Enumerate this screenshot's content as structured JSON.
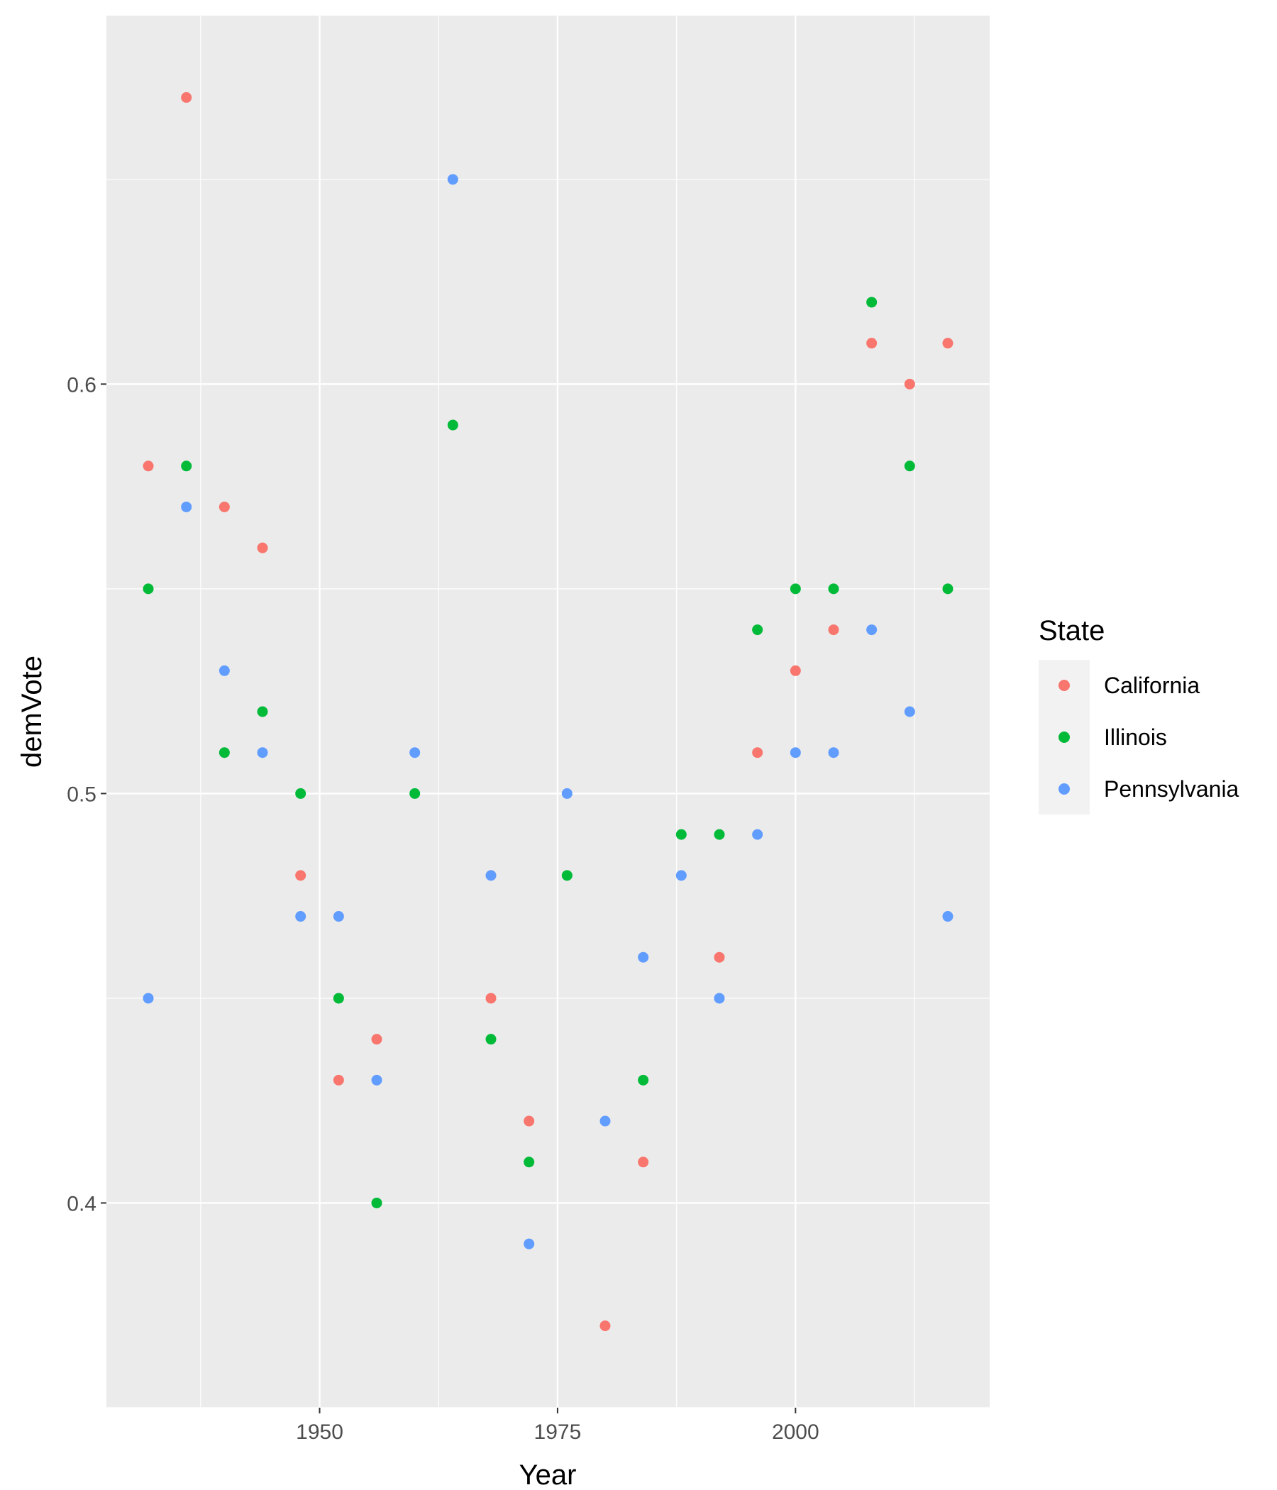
{
  "chart_data": {
    "type": "scatter",
    "xlabel": "Year",
    "ylabel": "demVote",
    "xlim": [
      1927.6,
      2020.4
    ],
    "ylim": [
      0.35,
      0.69
    ],
    "x_ticks": [
      1950,
      1975,
      2000
    ],
    "x_minor_ticks": [
      1937.5,
      1962.5,
      1987.5,
      2012.5
    ],
    "y_ticks": [
      0.4,
      0.5,
      0.6
    ],
    "y_minor_ticks": [
      0.35,
      0.45,
      0.55,
      0.65
    ],
    "grid": true,
    "legend": {
      "title": "State",
      "position": "right"
    },
    "series": [
      {
        "name": "California",
        "color": "#F8766D",
        "points": [
          [
            1932,
            0.58
          ],
          [
            1936,
            0.67
          ],
          [
            1940,
            0.57
          ],
          [
            1944,
            0.56
          ],
          [
            1948,
            0.48
          ],
          [
            1952,
            0.43
          ],
          [
            1956,
            0.44
          ],
          [
            1968,
            0.45
          ],
          [
            1972,
            0.42
          ],
          [
            1980,
            0.37
          ],
          [
            1984,
            0.41
          ],
          [
            1992,
            0.46
          ],
          [
            1996,
            0.51
          ],
          [
            2000,
            0.53
          ],
          [
            2004,
            0.54
          ],
          [
            2008,
            0.61
          ],
          [
            2012,
            0.6
          ],
          [
            2016,
            0.61
          ]
        ]
      },
      {
        "name": "Illinois",
        "color": "#00BA38",
        "points": [
          [
            1932,
            0.55
          ],
          [
            1936,
            0.58
          ],
          [
            1940,
            0.51
          ],
          [
            1944,
            0.52
          ],
          [
            1948,
            0.5
          ],
          [
            1952,
            0.45
          ],
          [
            1956,
            0.4
          ],
          [
            1960,
            0.5
          ],
          [
            1964,
            0.59
          ],
          [
            1968,
            0.44
          ],
          [
            1972,
            0.41
          ],
          [
            1976,
            0.48
          ],
          [
            1984,
            0.43
          ],
          [
            1988,
            0.49
          ],
          [
            1992,
            0.49
          ],
          [
            1996,
            0.54
          ],
          [
            2000,
            0.55
          ],
          [
            2004,
            0.55
          ],
          [
            2008,
            0.62
          ],
          [
            2012,
            0.58
          ],
          [
            2016,
            0.55
          ]
        ]
      },
      {
        "name": "Pennsylvania",
        "color": "#619CFF",
        "points": [
          [
            1932,
            0.45
          ],
          [
            1936,
            0.57
          ],
          [
            1940,
            0.53
          ],
          [
            1944,
            0.51
          ],
          [
            1948,
            0.47
          ],
          [
            1952,
            0.47
          ],
          [
            1956,
            0.43
          ],
          [
            1960,
            0.51
          ],
          [
            1964,
            0.65
          ],
          [
            1968,
            0.48
          ],
          [
            1972,
            0.39
          ],
          [
            1976,
            0.5
          ],
          [
            1980,
            0.42
          ],
          [
            1984,
            0.46
          ],
          [
            1988,
            0.48
          ],
          [
            1992,
            0.45
          ],
          [
            1996,
            0.49
          ],
          [
            2000,
            0.51
          ],
          [
            2004,
            0.51
          ],
          [
            2008,
            0.54
          ],
          [
            2012,
            0.52
          ],
          [
            2016,
            0.47
          ]
        ]
      }
    ]
  }
}
